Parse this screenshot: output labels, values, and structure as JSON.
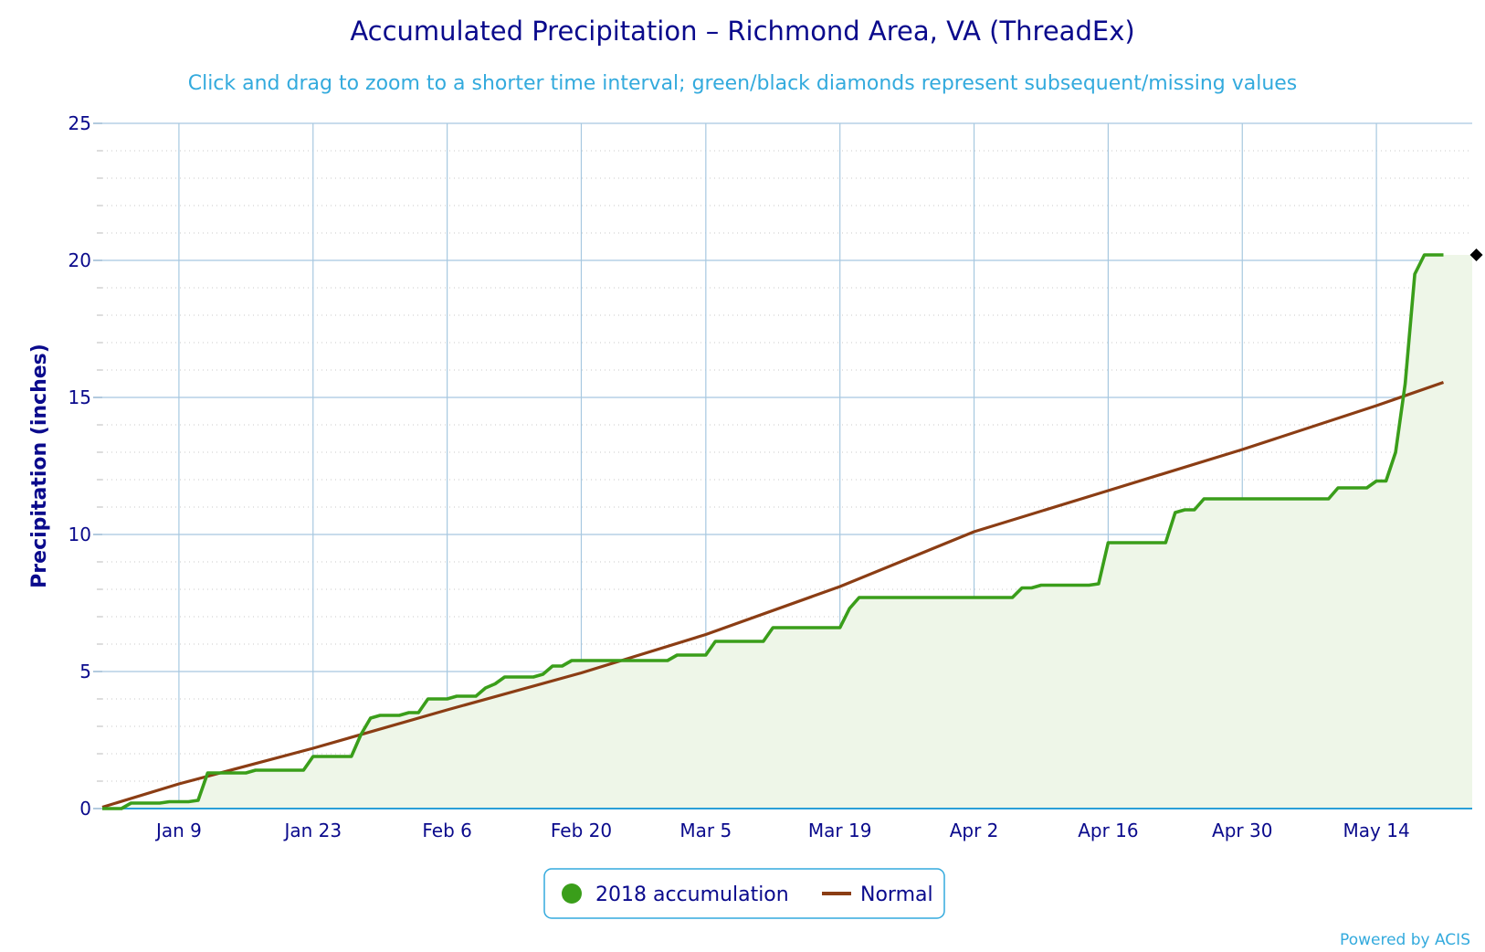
{
  "chart_data": {
    "type": "line",
    "title": "Accumulated Precipitation – Richmond Area, VA (ThreadEx)",
    "subtitle": "Click and drag to zoom to a shorter time interval; green/black diamonds represent subsequent/missing values",
    "ylabel": "Precipitation (inches)",
    "xlabel": "",
    "ylim": [
      0,
      25
    ],
    "yticks": [
      "0",
      "5",
      "10",
      "15",
      "20",
      "25"
    ],
    "xlim": [
      "2018-01-01",
      "2018-05-24"
    ],
    "xticks": [
      {
        "date": "2018-01-09",
        "label": "Jan 9"
      },
      {
        "date": "2018-01-23",
        "label": "Jan 23"
      },
      {
        "date": "2018-02-06",
        "label": "Feb 6"
      },
      {
        "date": "2018-02-20",
        "label": "Feb 20"
      },
      {
        "date": "2018-03-05",
        "label": "Mar 5"
      },
      {
        "date": "2018-03-19",
        "label": "Mar 19"
      },
      {
        "date": "2018-04-02",
        "label": "Apr 2"
      },
      {
        "date": "2018-04-16",
        "label": "Apr 16"
      },
      {
        "date": "2018-04-30",
        "label": "Apr 30"
      },
      {
        "date": "2018-05-14",
        "label": "May 14"
      }
    ],
    "grid": true,
    "legend_position": "bottom-center",
    "series": [
      {
        "name": "2018 accumulation",
        "color": "#3a9e1a",
        "fill": "#eef6e8",
        "data": [
          [
            "2018-01-01",
            0.0
          ],
          [
            "2018-01-03",
            0.0
          ],
          [
            "2018-01-04",
            0.2
          ],
          [
            "2018-01-07",
            0.2
          ],
          [
            "2018-01-08",
            0.25
          ],
          [
            "2018-01-10",
            0.25
          ],
          [
            "2018-01-11",
            0.3
          ],
          [
            "2018-01-12",
            1.3
          ],
          [
            "2018-01-16",
            1.3
          ],
          [
            "2018-01-17",
            1.4
          ],
          [
            "2018-01-22",
            1.4
          ],
          [
            "2018-01-23",
            1.9
          ],
          [
            "2018-01-27",
            1.9
          ],
          [
            "2018-01-28",
            2.7
          ],
          [
            "2018-01-29",
            3.3
          ],
          [
            "2018-01-30",
            3.4
          ],
          [
            "2018-02-01",
            3.4
          ],
          [
            "2018-02-02",
            3.5
          ],
          [
            "2018-02-03",
            3.5
          ],
          [
            "2018-02-04",
            4.0
          ],
          [
            "2018-02-06",
            4.0
          ],
          [
            "2018-02-07",
            4.1
          ],
          [
            "2018-02-09",
            4.1
          ],
          [
            "2018-02-10",
            4.4
          ],
          [
            "2018-02-11",
            4.55
          ],
          [
            "2018-02-12",
            4.8
          ],
          [
            "2018-02-15",
            4.8
          ],
          [
            "2018-02-16",
            4.9
          ],
          [
            "2018-02-17",
            5.2
          ],
          [
            "2018-02-18",
            5.2
          ],
          [
            "2018-02-19",
            5.4
          ],
          [
            "2018-02-28",
            5.4
          ],
          [
            "2018-03-01",
            5.4
          ],
          [
            "2018-03-02",
            5.6
          ],
          [
            "2018-03-05",
            5.6
          ],
          [
            "2018-03-06",
            6.1
          ],
          [
            "2018-03-11",
            6.1
          ],
          [
            "2018-03-12",
            6.6
          ],
          [
            "2018-03-16",
            6.6
          ],
          [
            "2018-03-19",
            6.6
          ],
          [
            "2018-03-20",
            7.3
          ],
          [
            "2018-03-21",
            7.7
          ],
          [
            "2018-03-28",
            7.7
          ],
          [
            "2018-04-06",
            7.7
          ],
          [
            "2018-04-07",
            8.05
          ],
          [
            "2018-04-08",
            8.05
          ],
          [
            "2018-04-09",
            8.15
          ],
          [
            "2018-04-14",
            8.15
          ],
          [
            "2018-04-15",
            8.2
          ],
          [
            "2018-04-16",
            9.7
          ],
          [
            "2018-04-22",
            9.7
          ],
          [
            "2018-04-23",
            10.8
          ],
          [
            "2018-04-24",
            10.9
          ],
          [
            "2018-04-25",
            10.9
          ],
          [
            "2018-04-26",
            11.3
          ],
          [
            "2018-05-09",
            11.3
          ],
          [
            "2018-05-10",
            11.7
          ],
          [
            "2018-05-13",
            11.7
          ],
          [
            "2018-05-14",
            11.95
          ],
          [
            "2018-05-15",
            11.95
          ],
          [
            "2018-05-16",
            13.0
          ],
          [
            "2018-05-17",
            15.5
          ],
          [
            "2018-05-18",
            19.5
          ],
          [
            "2018-05-19",
            20.2
          ],
          [
            "2018-05-20",
            20.2
          ],
          [
            "2018-05-21",
            20.2
          ]
        ]
      },
      {
        "name": "Normal",
        "color": "#8b3d14",
        "data": [
          [
            "2018-01-01",
            0.05
          ],
          [
            "2018-01-09",
            0.9
          ],
          [
            "2018-01-23",
            2.2
          ],
          [
            "2018-02-06",
            3.6
          ],
          [
            "2018-02-20",
            4.95
          ],
          [
            "2018-03-05",
            6.35
          ],
          [
            "2018-03-19",
            8.1
          ],
          [
            "2018-04-02",
            10.1
          ],
          [
            "2018-04-16",
            11.6
          ],
          [
            "2018-04-30",
            13.1
          ],
          [
            "2018-05-14",
            14.7
          ],
          [
            "2018-05-21",
            15.55
          ]
        ]
      }
    ],
    "missing_markers": [
      {
        "date": "2018-05-21",
        "value": 20.2,
        "color": "#000000"
      }
    ]
  },
  "credit": "Powered by ACIS"
}
